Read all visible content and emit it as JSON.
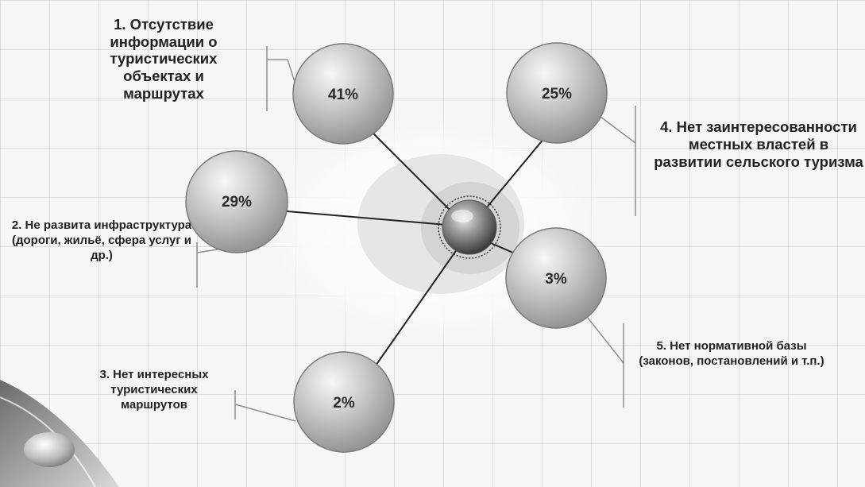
{
  "items": [
    {
      "value": "41%",
      "caption": "1. Отсутствие информации о туристических объектах и маршрутах"
    },
    {
      "value": "29%",
      "caption": "2. Не развита инфраструктура (дороги, жильё, сфера услуг и др.)"
    },
    {
      "value": "2%",
      "caption": "3. Нет интересных туристических маршрутов"
    },
    {
      "value": "25%",
      "caption": "4. Нет заинтересованности местных властей в развитии сельского туризма"
    },
    {
      "value": "3%",
      "caption": "5. Нет нормативной базы (законов, постановлений и т.п.)"
    }
  ]
}
